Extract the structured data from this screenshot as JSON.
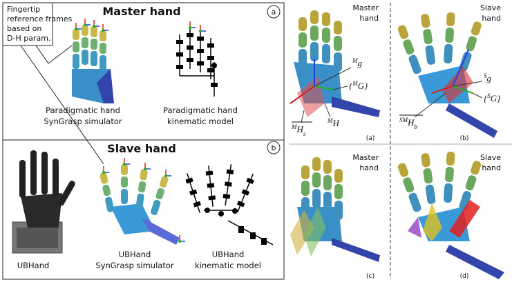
{
  "left": {
    "callout": [
      "Fingertip",
      "reference frames",
      "based on",
      "D-H param."
    ],
    "master": {
      "title": "Master hand",
      "tag": "a",
      "captions": [
        [
          "Paradigmatic hand",
          "SynGrasp simulator"
        ],
        [
          "Paradigmatic hand",
          "kinematic model"
        ]
      ]
    },
    "slave": {
      "title": "Slave hand",
      "tag": "b",
      "captions": [
        [
          "UBHand"
        ],
        [
          "UBHand",
          "SynGrasp simulator"
        ],
        [
          "UBHand",
          "kinematic model"
        ]
      ]
    }
  },
  "right": {
    "panels": [
      {
        "caption": "(a)",
        "label": [
          "Master",
          "hand"
        ],
        "symbols": [
          [
            {
              "t": "M",
              "sup": true
            },
            {
              "t": "g"
            }
          ],
          [
            {
              "t": "{"
            },
            {
              "t": "M",
              "sup": true
            },
            {
              "t": "G}"
            }
          ],
          [
            {
              "t": "M",
              "sup": true
            },
            {
              "t": "H"
            }
          ],
          [
            {
              "t": "M",
              "sup": true
            },
            {
              "t": "H"
            },
            {
              "t": "s",
              "sub": true
            }
          ]
        ]
      },
      {
        "caption": "(b)",
        "label": [
          "Slave",
          "hand"
        ],
        "symbols": [
          [
            {
              "t": "S",
              "sup": true
            },
            {
              "t": "g"
            }
          ],
          [
            {
              "t": "{"
            },
            {
              "t": "S",
              "sup": true
            },
            {
              "t": "G}"
            }
          ],
          [
            {
              "t": "SM",
              "sup": true
            },
            {
              "t": "H"
            },
            {
              "t": "b",
              "sub": true
            }
          ]
        ]
      },
      {
        "caption": "(c)",
        "label": [
          "Master",
          "hand"
        ],
        "symbols": []
      },
      {
        "caption": "(d)",
        "label": [
          "Slave",
          "hand"
        ],
        "symbols": []
      }
    ]
  }
}
